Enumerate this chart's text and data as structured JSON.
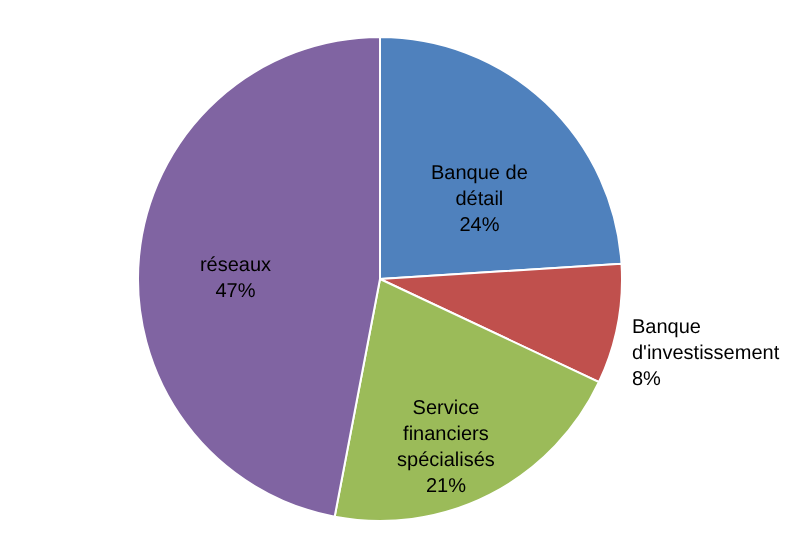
{
  "chart_data": {
    "type": "pie",
    "categories": [
      "Banque de détail",
      "Banque d'investissement",
      "Service financiers spécialisés",
      "réseaux"
    ],
    "values": [
      24,
      8,
      21,
      47
    ],
    "value_labels": [
      "24%",
      "8%",
      "21%",
      "47%"
    ],
    "colors": [
      "#4f81bd",
      "#c0504d",
      "#9bbb59",
      "#8064a2"
    ]
  }
}
